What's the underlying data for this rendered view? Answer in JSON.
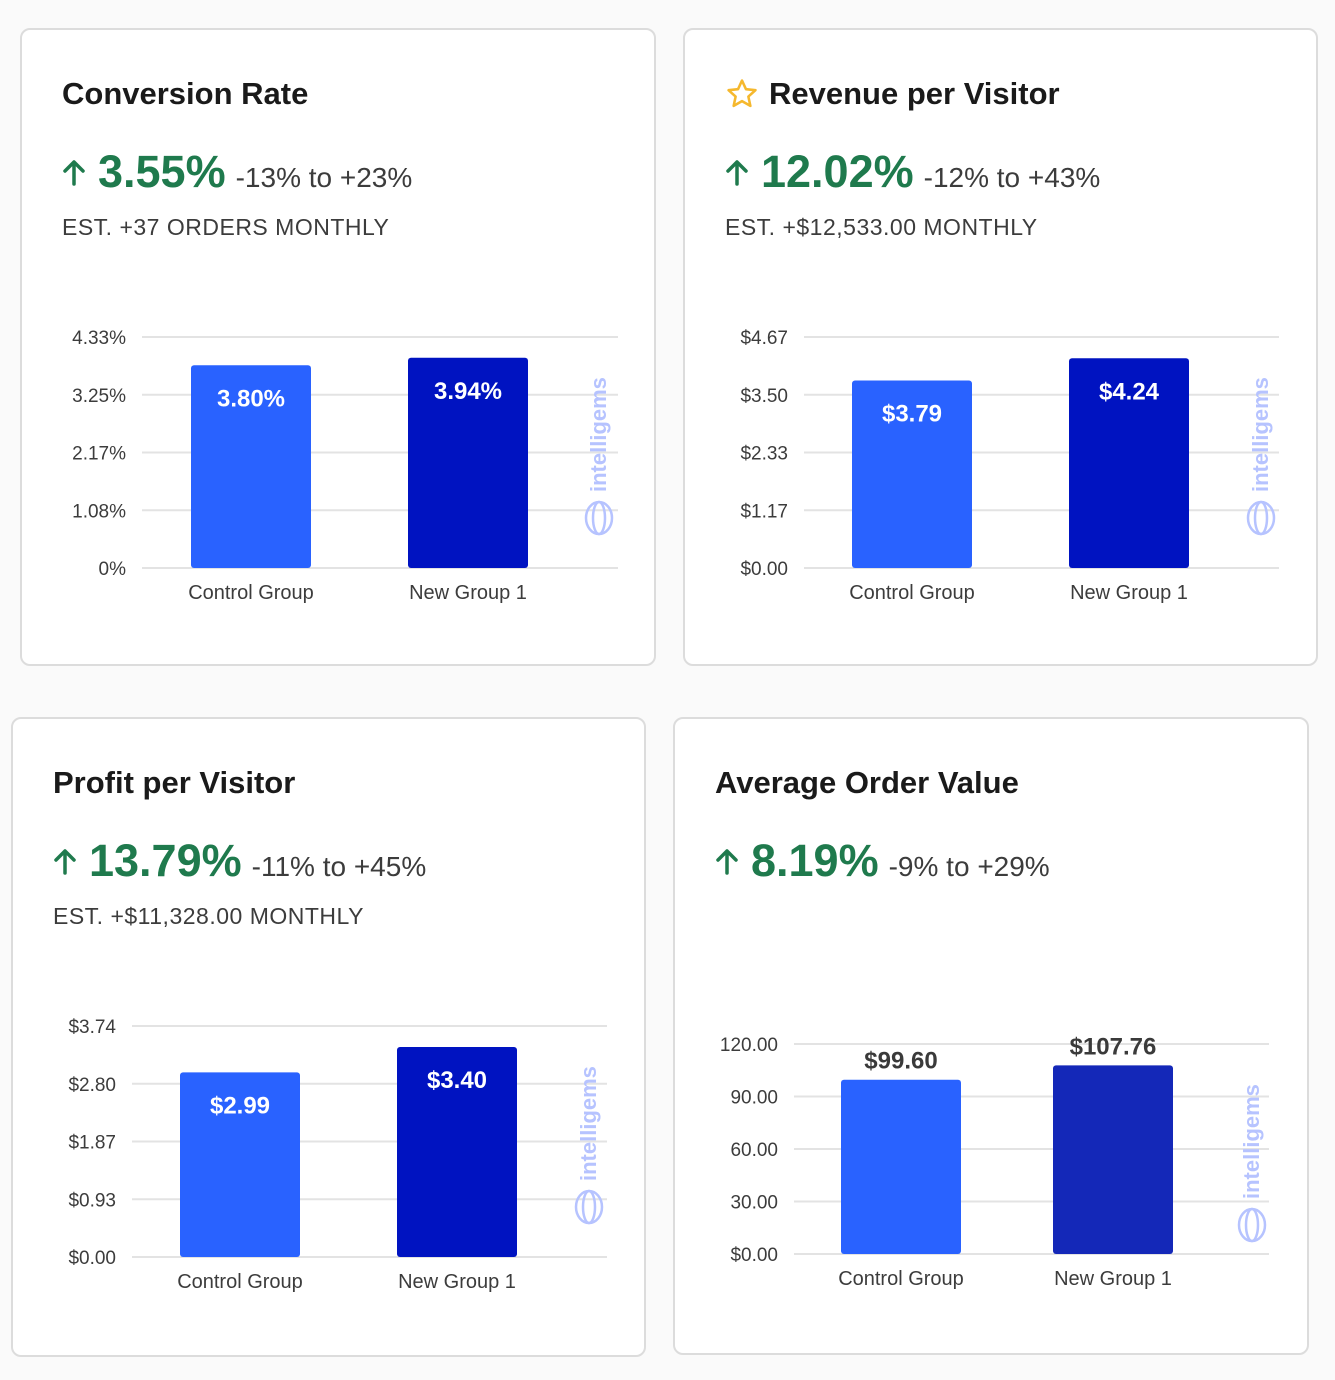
{
  "cards": [
    {
      "title": "Conversion Rate",
      "lift": "3.55%",
      "range": "-13% to +23%",
      "estimate": "EST. +37 ORDERS MONTHLY",
      "starred": false
    },
    {
      "title": "Revenue per Visitor",
      "lift": "12.02%",
      "range": "-12% to +43%",
      "estimate": "EST. +$12,533.00 MONTHLY",
      "starred": true
    },
    {
      "title": "Profit per Visitor",
      "lift": "13.79%",
      "range": "-11% to +45%",
      "estimate": "EST. +$11,328.00 MONTHLY",
      "starred": false
    },
    {
      "title": "Average Order Value",
      "lift": "8.19%",
      "range": "-9% to +29%",
      "estimate": "",
      "starred": false
    }
  ],
  "watermark": "intelligems",
  "colors": {
    "control": "#2962ff",
    "variant": "#0013c1",
    "variant_aov": "#1428b8",
    "positive": "#1f7a4d",
    "star": "#f5b82e"
  },
  "chart_data": [
    {
      "type": "bar",
      "categories": [
        "Control Group",
        "New Group 1"
      ],
      "values": [
        3.8,
        3.94
      ],
      "value_labels": [
        "3.80%",
        "3.94%"
      ],
      "ylim": [
        0,
        4.33
      ],
      "yticks": [
        "0%",
        "1.08%",
        "2.17%",
        "3.25%",
        "4.33%"
      ],
      "label_position": "inside",
      "grid": true
    },
    {
      "type": "bar",
      "categories": [
        "Control Group",
        "New Group 1"
      ],
      "values": [
        3.79,
        4.24
      ],
      "value_labels": [
        "$3.79",
        "$4.24"
      ],
      "ylim": [
        0,
        4.67
      ],
      "yticks": [
        "$0.00",
        "$1.17",
        "$2.33",
        "$3.50",
        "$4.67"
      ],
      "label_position": "inside",
      "grid": true
    },
    {
      "type": "bar",
      "categories": [
        "Control Group",
        "New Group 1"
      ],
      "values": [
        2.99,
        3.4
      ],
      "value_labels": [
        "$2.99",
        "$3.40"
      ],
      "ylim": [
        0,
        3.74
      ],
      "yticks": [
        "$0.00",
        "$0.93",
        "$1.87",
        "$2.80",
        "$3.74"
      ],
      "label_position": "inside",
      "grid": true
    },
    {
      "type": "bar",
      "categories": [
        "Control Group",
        "New Group 1"
      ],
      "values": [
        99.6,
        107.76
      ],
      "value_labels": [
        "$99.60",
        "$107.76"
      ],
      "ylim": [
        0,
        120
      ],
      "yticks": [
        "$0.00",
        "30.00",
        "60.00",
        "90.00",
        "120.00"
      ],
      "label_position": "above",
      "grid": true
    }
  ]
}
